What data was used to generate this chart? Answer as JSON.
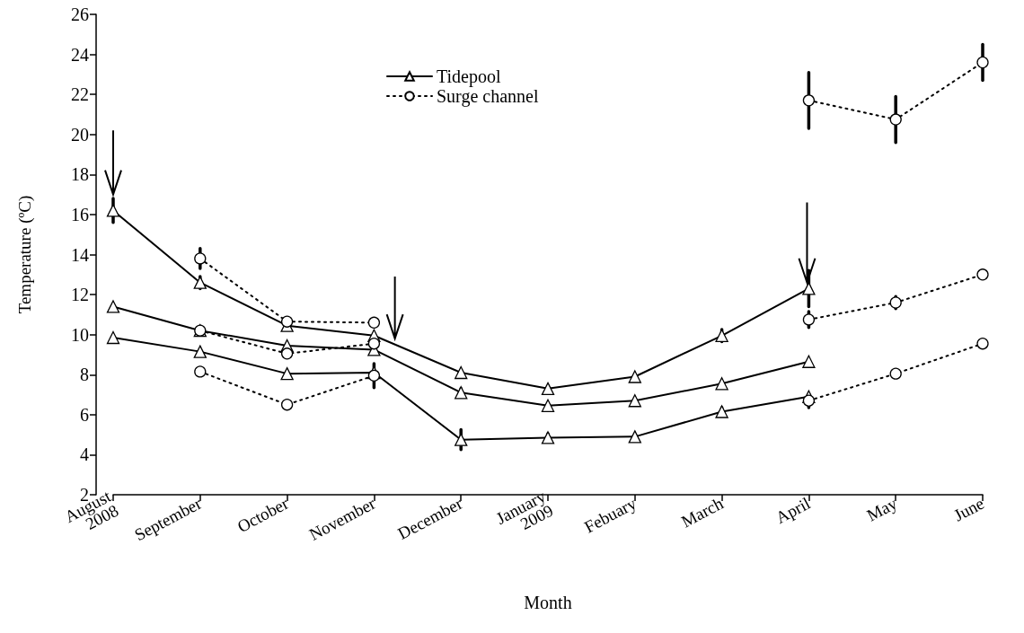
{
  "chart_data": {
    "type": "line",
    "xlabel": "Month",
    "ylabel": "Temperature (ºC)",
    "categories": [
      "August\n2008",
      "September",
      "October",
      "November",
      "December",
      "January\n2009",
      "Febuary",
      "March",
      "April",
      "May",
      "June"
    ],
    "ylim": [
      2,
      26
    ],
    "yticks": [
      2,
      4,
      6,
      8,
      10,
      12,
      14,
      16,
      18,
      20,
      22,
      24,
      26
    ],
    "grid": false,
    "legend": "top center",
    "series": [
      {
        "name": "Tidepool",
        "color": "#000000",
        "marker": "triangle",
        "line_style": "solid",
        "values": [
          16.2,
          12.6,
          10.45,
          9.95,
          8.1,
          7.3,
          7.9,
          9.95,
          12.3,
          null,
          null
        ],
        "errors": [
          0.6,
          0.3,
          0.2,
          null,
          null,
          null,
          null,
          0.3,
          0.9,
          null,
          null
        ]
      },
      {
        "color": "#000000",
        "marker": "triangle",
        "line_style": "solid",
        "values": [
          11.4,
          10.2,
          9.45,
          9.25,
          7.1,
          6.45,
          6.7,
          7.55,
          8.65,
          null,
          null
        ],
        "errors": [
          null,
          null,
          null,
          null,
          0.2,
          null,
          null,
          null,
          null,
          null,
          null
        ]
      },
      {
        "color": "#000000",
        "marker": "triangle",
        "line_style": "solid",
        "values": [
          9.85,
          9.15,
          8.05,
          8.1,
          4.75,
          4.85,
          4.9,
          6.15,
          6.9,
          null,
          null
        ],
        "errors": [
          null,
          null,
          null,
          null,
          0.5,
          0.2,
          null,
          0.2,
          null,
          null,
          null
        ]
      },
      {
        "name": "Surge channel",
        "color": "#000000",
        "marker": "circle",
        "line_style": "dotted",
        "values": [
          null,
          13.8,
          10.65,
          10.6,
          null,
          null,
          null,
          null,
          21.7,
          20.75,
          23.6
        ],
        "errors": [
          null,
          0.5,
          null,
          null,
          null,
          null,
          null,
          null,
          1.4,
          1.15,
          0.9
        ]
      },
      {
        "color": "#000000",
        "marker": "circle",
        "line_style": "dotted",
        "values": [
          null,
          10.2,
          9.05,
          9.55,
          null,
          null,
          null,
          null,
          10.75,
          11.6,
          13.0
        ],
        "errors": [
          null,
          null,
          null,
          0.2,
          null,
          null,
          null,
          null,
          0.4,
          0.3,
          null
        ]
      },
      {
        "color": "#000000",
        "marker": "circle",
        "line_style": "dotted",
        "values": [
          null,
          8.15,
          6.5,
          7.95,
          null,
          null,
          null,
          null,
          6.7,
          8.05,
          9.55
        ],
        "errors": [
          null,
          null,
          0.2,
          0.6,
          null,
          null,
          null,
          null,
          0.35,
          null,
          null
        ]
      }
    ]
  }
}
